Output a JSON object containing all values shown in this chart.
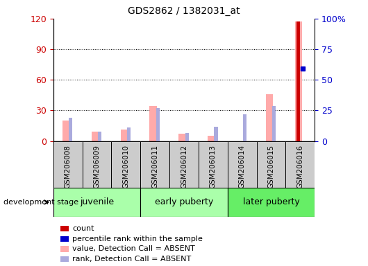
{
  "title": "GDS2862 / 1382031_at",
  "samples": [
    "GSM206008",
    "GSM206009",
    "GSM206010",
    "GSM206011",
    "GSM206012",
    "GSM206013",
    "GSM206014",
    "GSM206015",
    "GSM206016"
  ],
  "value_absent": [
    20,
    9,
    11,
    34,
    7,
    5,
    0,
    46,
    117
  ],
  "rank_absent": [
    23,
    9,
    13,
    32,
    8,
    14,
    26,
    34,
    0
  ],
  "count": [
    0,
    0,
    0,
    0,
    0,
    0,
    0,
    0,
    117
  ],
  "percentile_rank": [
    0,
    0,
    0,
    0,
    0,
    0,
    0,
    0,
    59
  ],
  "left_ylim": [
    0,
    120
  ],
  "right_ylim": [
    0,
    100
  ],
  "left_yticks": [
    0,
    30,
    60,
    90,
    120
  ],
  "right_yticks": [
    0,
    25,
    50,
    75,
    100
  ],
  "right_yticklabels": [
    "0",
    "25",
    "50",
    "75",
    "100%"
  ],
  "left_color": "#cc0000",
  "right_color": "#0000cc",
  "absent_value_color": "#ffaaaa",
  "absent_rank_color": "#aaaadd",
  "count_color": "#cc0000",
  "percentile_color": "#0000cc",
  "value_bar_width": 0.25,
  "rank_bar_width": 0.12,
  "count_bar_width": 0.12,
  "legend_items": [
    {
      "label": "count",
      "color": "#cc0000"
    },
    {
      "label": "percentile rank within the sample",
      "color": "#0000cc"
    },
    {
      "label": "value, Detection Call = ABSENT",
      "color": "#ffaaaa"
    },
    {
      "label": "rank, Detection Call = ABSENT",
      "color": "#aaaadd"
    }
  ],
  "group_juvenile_color": "#aaffaa",
  "group_early_color": "#aaffaa",
  "group_later_color": "#66ee66",
  "xtick_bg_color": "#cccccc"
}
